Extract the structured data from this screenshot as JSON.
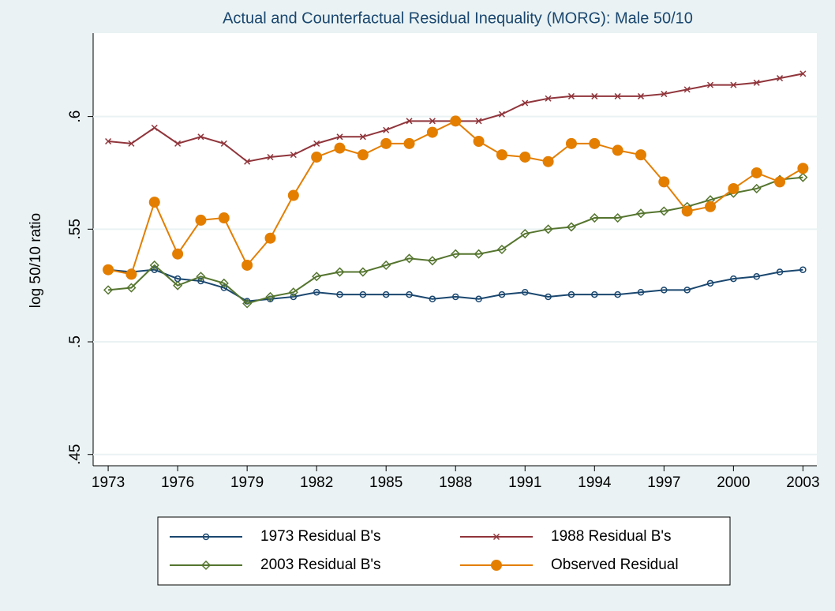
{
  "chart_data": {
    "type": "line",
    "title": "Actual and Counterfactual Residual Inequality (MORG): Male 50/10",
    "y_label": "log 50/10 ratio",
    "x": [
      1973,
      1974,
      1975,
      1976,
      1977,
      1978,
      1979,
      1980,
      1981,
      1982,
      1983,
      1984,
      1985,
      1986,
      1987,
      1988,
      1989,
      1990,
      1991,
      1992,
      1993,
      1994,
      1995,
      1996,
      1997,
      1998,
      1999,
      2000,
      2001,
      2002,
      2003
    ],
    "xlim": [
      1972.35,
      2003.6
    ],
    "xticks": [
      1973,
      1976,
      1979,
      1982,
      1985,
      1988,
      1991,
      1994,
      1997,
      2000,
      2003
    ],
    "ylim": [
      0.445,
      0.637
    ],
    "yticks": [
      {
        "value": 0.45,
        "label": ".45"
      },
      {
        "value": 0.5,
        "label": ".5"
      },
      {
        "value": 0.55,
        "label": ".55"
      },
      {
        "value": 0.6,
        "label": ".6"
      }
    ],
    "grid": true,
    "series": [
      {
        "name": "1973 Residual B's",
        "color": "#1a476f",
        "marker": "circle-hollow",
        "values": [
          0.532,
          0.531,
          0.532,
          0.528,
          0.527,
          0.524,
          0.518,
          0.519,
          0.52,
          0.522,
          0.521,
          0.521,
          0.521,
          0.521,
          0.519,
          0.52,
          0.519,
          0.521,
          0.522,
          0.52,
          0.521,
          0.521,
          0.521,
          0.522,
          0.523,
          0.523,
          0.526,
          0.528,
          0.529,
          0.531,
          0.532
        ]
      },
      {
        "name": "1988 Residual B's",
        "color": "#90353b",
        "marker": "x",
        "values": [
          0.589,
          0.588,
          0.595,
          0.588,
          0.591,
          0.588,
          0.58,
          0.582,
          0.583,
          0.588,
          0.591,
          0.591,
          0.594,
          0.598,
          0.598,
          0.598,
          0.598,
          0.601,
          0.606,
          0.608,
          0.609,
          0.609,
          0.609,
          0.609,
          0.61,
          0.612,
          0.614,
          0.614,
          0.615,
          0.617,
          0.619
        ]
      },
      {
        "name": "2003 Residual B's",
        "color": "#55752f",
        "marker": "diamond-hollow",
        "values": [
          0.523,
          0.524,
          0.534,
          0.525,
          0.529,
          0.526,
          0.517,
          0.52,
          0.522,
          0.529,
          0.531,
          0.531,
          0.534,
          0.537,
          0.536,
          0.539,
          0.539,
          0.541,
          0.548,
          0.55,
          0.551,
          0.555,
          0.555,
          0.557,
          0.558,
          0.56,
          0.563,
          0.566,
          0.568,
          0.572,
          0.573
        ]
      },
      {
        "name": "Observed Residual",
        "color": "#e37e00",
        "marker": "circle",
        "values": [
          0.532,
          0.53,
          0.562,
          0.539,
          0.554,
          0.555,
          0.534,
          0.546,
          0.565,
          0.582,
          0.586,
          0.583,
          0.588,
          0.588,
          0.593,
          0.598,
          0.589,
          0.583,
          0.582,
          0.58,
          0.588,
          0.588,
          0.585,
          0.583,
          0.571,
          0.558,
          0.56,
          0.568,
          0.575,
          0.571,
          0.577
        ]
      }
    ]
  }
}
